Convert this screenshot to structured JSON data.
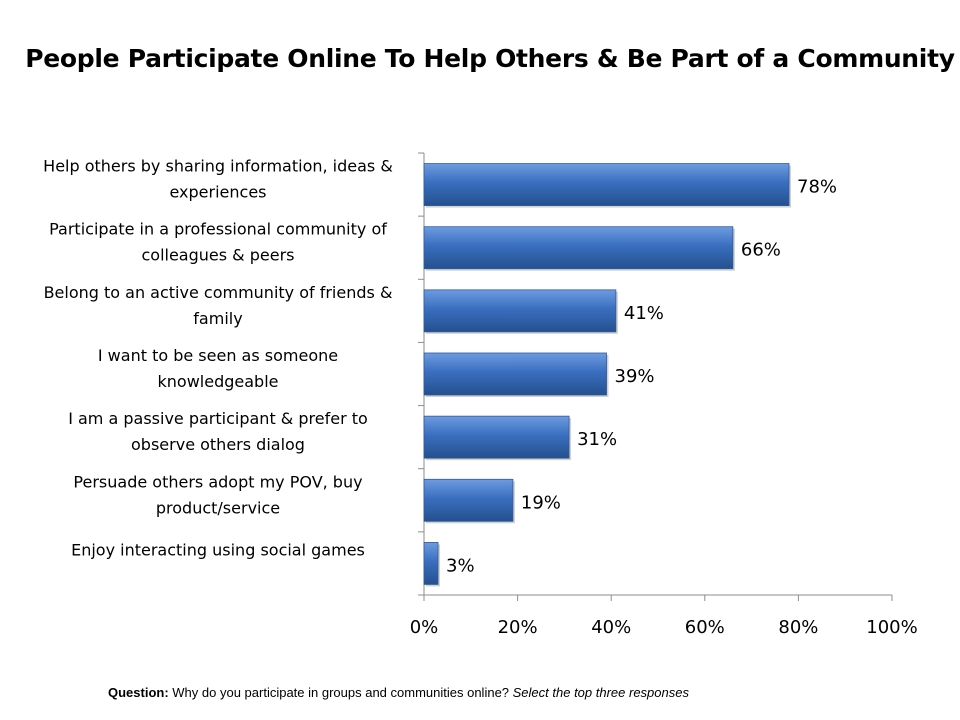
{
  "title": "People Participate Online To Help Others & Be Part of a Community",
  "footnote": {
    "label": "Question:",
    "text": " Why do you participate in groups and communities online? ",
    "hint": "Select the top three responses"
  },
  "chart_data": {
    "type": "bar",
    "orientation": "horizontal",
    "categories": [
      [
        "Help others by sharing information, ideas &",
        "experiences"
      ],
      [
        "Participate in a professional  community of",
        "colleagues & peers"
      ],
      [
        "Belong to an active community of friends &",
        "family"
      ],
      [
        "I want to be seen as someone",
        "knowledgeable"
      ],
      [
        "I am a passive participant & prefer to",
        "observe others dialog"
      ],
      [
        "Persuade others adopt my POV, buy",
        "product/service"
      ],
      [
        "Enjoy interacting  using social games"
      ]
    ],
    "values": [
      78,
      66,
      41,
      39,
      31,
      19,
      3
    ],
    "value_labels": [
      "78%",
      "66%",
      "41%",
      "39%",
      "31%",
      "19%",
      "3%"
    ],
    "xlim": [
      0,
      100
    ],
    "xticks": [
      "0%",
      "20%",
      "40%",
      "60%",
      "80%",
      "100%"
    ],
    "bar_color": "#3A6FBF",
    "bar_color_light": "#6D9BE0",
    "bar_color_dark": "#24508F",
    "grid": false,
    "legend": "none"
  }
}
